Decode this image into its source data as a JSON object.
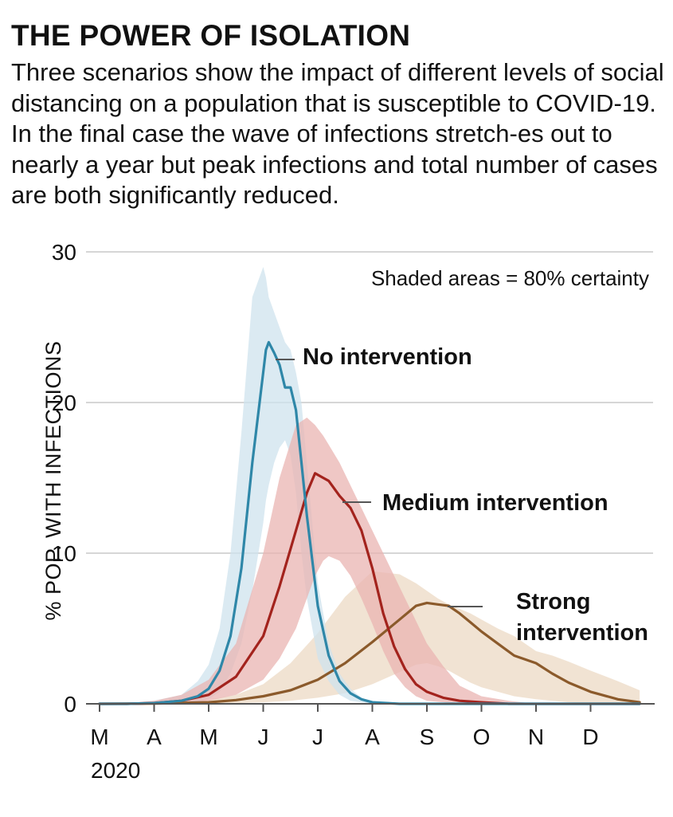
{
  "title": "THE POWER OF ISOLATION",
  "subtitle": "Three scenarios show the impact of different levels of social distancing on a population that is susceptible to COVID-19. In the final case the wave of infections stretch-es out to nearly a year but peak infections and total number of cases are both significantly reduced.",
  "colors": {
    "no_intervention": "#2f87a8",
    "no_intervention_band": "#cfe3ee",
    "medium_intervention": "#a3231d",
    "medium_intervention_band": "#eab4b2",
    "strong_intervention": "#8b5a2b",
    "strong_intervention_band": "#ecd9c4",
    "grid": "#c8c8c8"
  },
  "chart_data": {
    "type": "line",
    "title": "",
    "ylabel": "% POP. WITH INFECTIONS",
    "xlabel": "2020",
    "note": "Shaded areas = 80% certainty",
    "ylim": [
      0,
      30
    ],
    "yticks": [
      "0",
      "10",
      "20",
      "30"
    ],
    "xticks": [
      "M",
      "A",
      "M",
      "J",
      "J",
      "A",
      "S",
      "O",
      "N",
      "D"
    ],
    "x_months": [
      0,
      1,
      2,
      3,
      4,
      5,
      6,
      7,
      8,
      9
    ],
    "grid": true,
    "series": [
      {
        "name": "No intervention",
        "annotation": "No intervention",
        "x": [
          0,
          0.5,
          1,
          1.5,
          1.8,
          2,
          2.2,
          2.4,
          2.6,
          2.8,
          3,
          3.05,
          3.1,
          3.2,
          3.3,
          3.4,
          3.5,
          3.6,
          3.7,
          3.8,
          4,
          4.2,
          4.4,
          4.6,
          4.8,
          5,
          5.5,
          6,
          7,
          8,
          9,
          9.9
        ],
        "y": [
          0,
          0,
          0.05,
          0.2,
          0.5,
          1,
          2.2,
          4.5,
          9,
          16,
          22,
          23.5,
          24,
          23.3,
          22.5,
          21,
          21,
          19.5,
          16,
          12.5,
          6.5,
          3.2,
          1.5,
          0.7,
          0.3,
          0.1,
          0,
          0,
          0,
          0,
          0,
          0
        ],
        "band_upper": [
          0,
          0.05,
          0.2,
          0.6,
          1.5,
          2.6,
          5,
          10,
          18,
          27,
          29,
          28.3,
          27,
          26,
          25,
          24,
          23.5,
          22,
          20,
          16,
          8,
          4,
          2,
          1,
          0.4,
          0.1,
          0,
          0,
          0,
          0,
          0,
          0
        ],
        "band_lower": [
          0,
          0,
          0,
          0.05,
          0.15,
          0.3,
          0.8,
          2,
          4,
          7.5,
          12,
          13.5,
          14.5,
          16,
          17,
          17.5,
          16.5,
          14,
          10,
          7,
          3,
          1.5,
          0.6,
          0.2,
          0.1,
          0,
          0,
          0,
          0,
          0,
          0,
          0
        ]
      },
      {
        "name": "Medium intervention",
        "annotation": "Medium intervention",
        "x": [
          0,
          0.5,
          1,
          1.5,
          2,
          2.5,
          3,
          3.3,
          3.6,
          3.8,
          3.95,
          4.1,
          4.2,
          4.4,
          4.6,
          4.8,
          5,
          5.2,
          5.4,
          5.6,
          5.8,
          6,
          6.3,
          6.6,
          7,
          7.5,
          8,
          9,
          9.9
        ],
        "y": [
          0,
          0,
          0.05,
          0.2,
          0.6,
          1.8,
          4.5,
          7.8,
          11.5,
          14,
          15.3,
          15,
          14.8,
          13.8,
          13,
          11.5,
          9,
          6,
          3.8,
          2.3,
          1.3,
          0.8,
          0.4,
          0.2,
          0.1,
          0,
          0,
          0,
          0
        ],
        "band_upper": [
          0,
          0.05,
          0.2,
          0.6,
          1.6,
          4,
          10,
          15,
          18.5,
          19,
          18.5,
          17.8,
          17.2,
          16,
          14.5,
          13,
          11.5,
          10,
          8.5,
          7,
          5.5,
          4,
          2.5,
          1.2,
          0.5,
          0.2,
          0,
          0,
          0
        ],
        "band_lower": [
          0,
          0,
          0,
          0.05,
          0.2,
          0.6,
          1.6,
          3,
          5,
          7,
          8.5,
          9.5,
          9.8,
          9.5,
          8.5,
          7,
          5.3,
          3.5,
          2,
          1.1,
          0.5,
          0.2,
          0.1,
          0,
          0,
          0,
          0,
          0,
          0
        ]
      },
      {
        "name": "Strong intervention",
        "annotation": "Strong intervention",
        "x": [
          0,
          1,
          2,
          2.5,
          3,
          3.5,
          4,
          4.5,
          5,
          5.5,
          5.8,
          6,
          6.2,
          6.4,
          6.6,
          6.8,
          7,
          7.3,
          7.6,
          8,
          8.3,
          8.6,
          9,
          9.5,
          9.9
        ],
        "y": [
          0,
          0.02,
          0.1,
          0.25,
          0.5,
          0.9,
          1.6,
          2.7,
          4.1,
          5.6,
          6.5,
          6.7,
          6.6,
          6.5,
          6,
          5.4,
          4.8,
          4,
          3.2,
          2.7,
          2,
          1.4,
          0.8,
          0.3,
          0.1
        ],
        "band_upper": [
          0,
          0.05,
          0.25,
          0.6,
          1.3,
          2.7,
          4.7,
          7.1,
          8.8,
          8.6,
          8,
          7.5,
          7,
          6.6,
          6.3,
          6,
          5.6,
          5,
          4.5,
          3.5,
          3.2,
          2.8,
          2.2,
          1.5,
          0.9
        ],
        "band_lower": [
          0,
          0,
          0.02,
          0.05,
          0.1,
          0.2,
          0.4,
          0.7,
          1.3,
          2.1,
          2.6,
          2.7,
          2.5,
          2.2,
          1.8,
          1.4,
          1.1,
          0.8,
          0.5,
          0.3,
          0.2,
          0.1,
          0.05,
          0,
          0
        ]
      }
    ]
  }
}
